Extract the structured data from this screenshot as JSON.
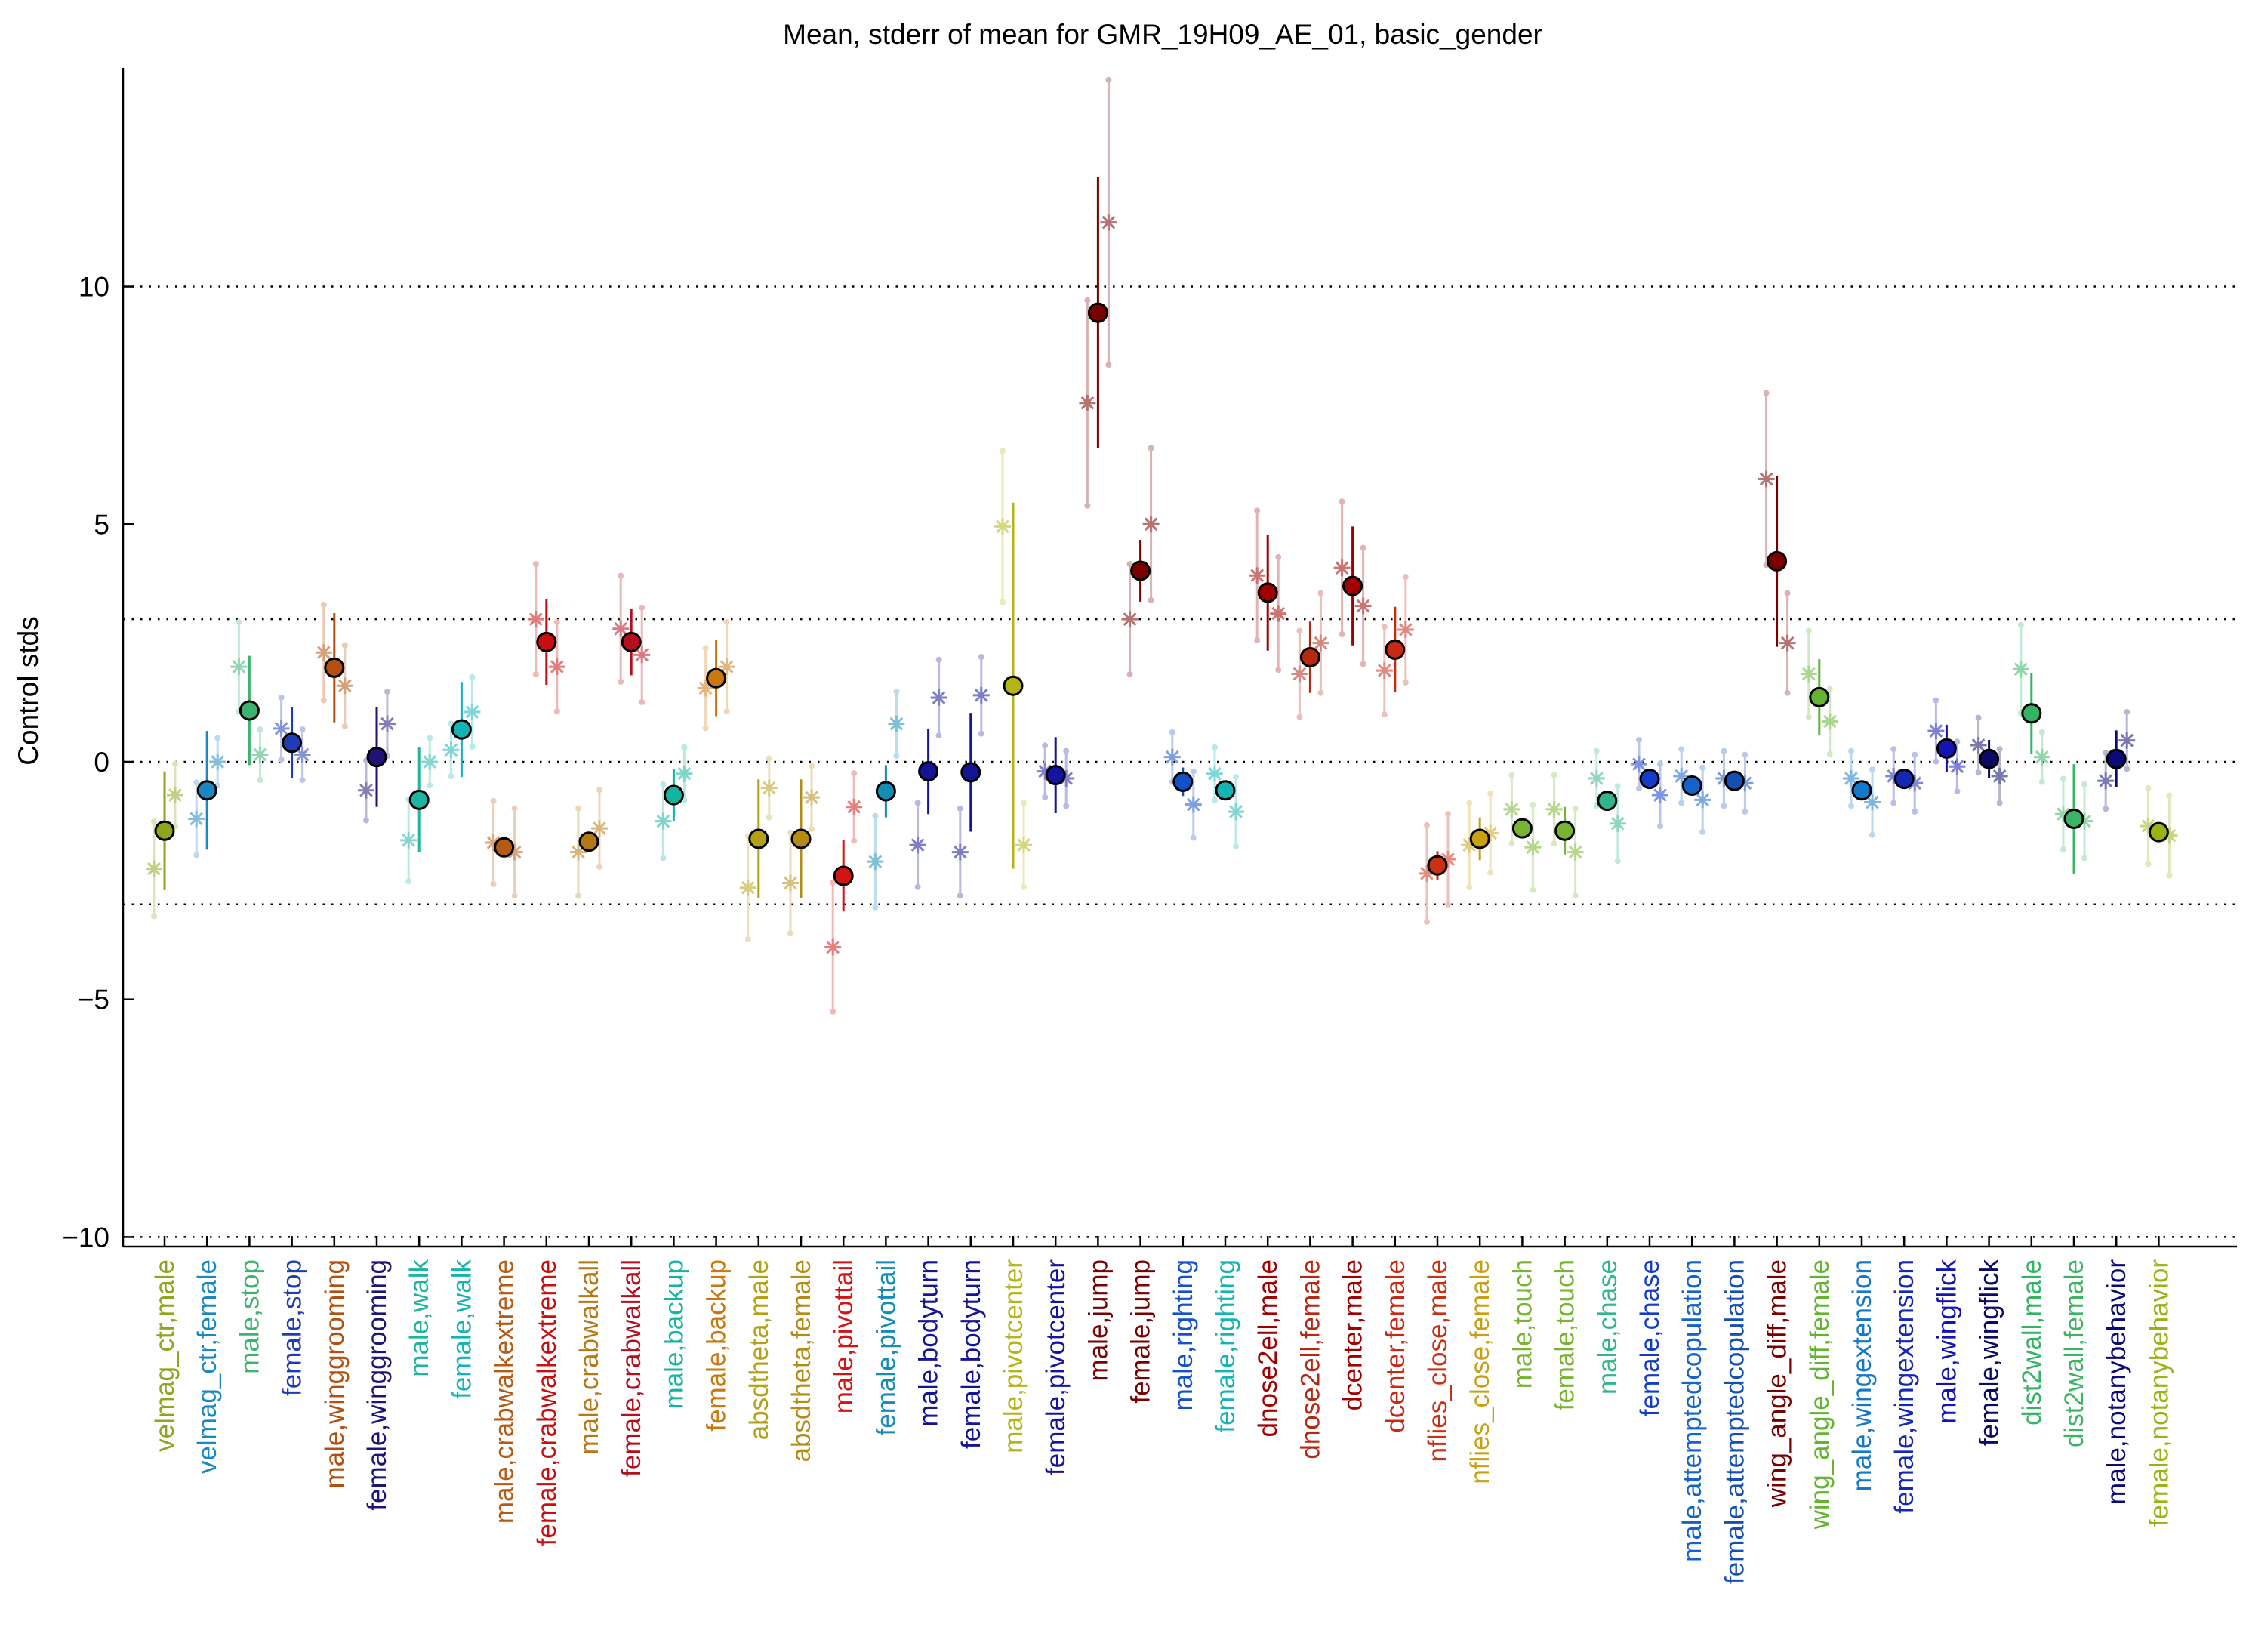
{
  "chart_data": {
    "type": "scatter",
    "title": "Mean, stderr of mean for GMR_19H09_AE_01, basic_gender",
    "xlabel": "",
    "ylabel": "Control stds",
    "ylim": [
      -10.2,
      14.6
    ],
    "yticks": [
      -10,
      -5,
      0,
      5,
      10
    ],
    "ytick_labels": [
      "−10",
      "−5",
      "0",
      "5",
      "10"
    ],
    "reference_lines": [
      -3,
      0,
      3,
      10,
      -10
    ],
    "grid": false,
    "legend": "none",
    "categories": [
      "velmag_ctr,male",
      "velmag_ctr,female",
      "male,stop",
      "female,stop",
      "male,winggrooming",
      "female,winggrooming",
      "male,walk",
      "female,walk",
      "male,crabwalkextreme",
      "female,crabwalkextreme",
      "male,crabwalkall",
      "female,crabwalkall",
      "male,backup",
      "female,backup",
      "absdtheta,male",
      "absdtheta,female",
      "male,pivottail",
      "female,pivottail",
      "male,bodyturn",
      "female,bodyturn",
      "male,pivotcenter",
      "female,pivotcenter",
      "male,jump",
      "female,jump",
      "male,righting",
      "female,righting",
      "dnose2ell,male",
      "dnose2ell,female",
      "dcenter,male",
      "dcenter,female",
      "nflies_close,male",
      "nflies_close,female",
      "male,touch",
      "female,touch",
      "male,chase",
      "female,chase",
      "male,attemptedcopulation",
      "female,attemptedcopulation",
      "wing_angle_diff,male",
      "wing_angle_diff,female",
      "male,wingextension",
      "female,wingextension",
      "male,wingflick",
      "female,wingflick",
      "dist2wall,male",
      "dist2wall,female",
      "male,notanybehavior",
      "female,notanybehavior"
    ],
    "colors": [
      "#8fa51e",
      "#1a88c0",
      "#3cb371",
      "#1e3cb4",
      "#b4500f",
      "#1e1478",
      "#1eb4a0",
      "#14b4b4",
      "#b45a14",
      "#c80f0f",
      "#b47814",
      "#b40f1e",
      "#14b4a0",
      "#c8780f",
      "#b4a014",
      "#b48c14",
      "#d21414",
      "#148cb4",
      "#141496",
      "#141496",
      "#b4b414",
      "#1414a0",
      "#780000",
      "#780000",
      "#1450c8",
      "#14b4b4",
      "#a00000",
      "#b42814",
      "#a00000",
      "#c82814",
      "#c83214",
      "#c8a014",
      "#78b432",
      "#78b432",
      "#32b48c",
      "#143cc8",
      "#1464c8",
      "#1450b4",
      "#780000",
      "#64b432",
      "#1478c8",
      "#1428b4",
      "#1414b4",
      "#0a0a64",
      "#32b464",
      "#3cb464",
      "#0a0a78",
      "#96b414"
    ],
    "series": [
      {
        "name": "mean",
        "values": [
          -1.45,
          -0.6,
          1.08,
          0.4,
          1.98,
          0.1,
          -0.8,
          0.68,
          -1.8,
          2.52,
          -1.68,
          2.52,
          -0.7,
          1.76,
          -1.62,
          -1.62,
          -2.4,
          -0.62,
          -0.2,
          -0.22,
          1.6,
          -0.28,
          9.45,
          4.02,
          -0.42,
          -0.6,
          3.56,
          2.2,
          3.7,
          2.36,
          -2.18,
          -1.62,
          -1.4,
          -1.45,
          -0.82,
          -0.36,
          -0.5,
          -0.4,
          4.22,
          1.36,
          -0.6,
          -0.36,
          0.28,
          0.06,
          1.02,
          -1.2,
          0.06,
          -1.48
        ]
      },
      {
        "name": "stderr",
        "values": [
          1.25,
          1.25,
          1.15,
          0.75,
          1.15,
          1.05,
          1.1,
          1.0,
          0.1,
          0.9,
          0.15,
          0.7,
          0.55,
          0.8,
          1.25,
          1.25,
          0.75,
          0.55,
          0.9,
          1.25,
          3.85,
          0.8,
          2.85,
          0.65,
          0.3,
          0.2,
          1.22,
          0.75,
          1.25,
          0.9,
          0.3,
          0.45,
          0.15,
          0.5,
          0.1,
          0.2,
          0.15,
          0.1,
          1.8,
          0.8,
          0.1,
          0.1,
          0.5,
          0.4,
          0.85,
          1.15,
          0.6,
          0.1
        ]
      },
      {
        "name": "line_a",
        "values": [
          -2.25,
          -1.2,
          2.0,
          0.7,
          2.3,
          -0.6,
          -1.65,
          0.25,
          -1.7,
          3.0,
          -1.9,
          2.8,
          -1.25,
          1.55,
          -2.65,
          -2.55,
          -3.9,
          -2.1,
          -1.75,
          -1.9,
          4.95,
          -0.2,
          7.55,
          3.0,
          0.1,
          -0.25,
          3.92,
          1.85,
          4.08,
          1.92,
          -2.35,
          -1.75,
          -1.0,
          -1.0,
          -0.35,
          -0.05,
          -0.3,
          -0.35,
          5.95,
          1.85,
          -0.35,
          -0.3,
          0.65,
          0.35,
          1.95,
          -1.1,
          -0.4,
          -1.35
        ]
      },
      {
        "name": "line_b",
        "values": [
          -0.7,
          0.0,
          0.15,
          0.15,
          1.6,
          0.8,
          0.0,
          1.05,
          -1.9,
          2.0,
          -1.4,
          2.25,
          -0.25,
          2.0,
          -0.55,
          -0.75,
          -0.95,
          0.8,
          1.35,
          1.4,
          -1.75,
          -0.35,
          11.35,
          5.0,
          -0.9,
          -1.05,
          3.12,
          2.5,
          3.28,
          2.78,
          -2.05,
          -1.5,
          -1.8,
          -1.9,
          -1.3,
          -0.7,
          -0.8,
          -0.45,
          2.5,
          0.85,
          -0.85,
          -0.45,
          -0.1,
          -0.3,
          0.1,
          -1.25,
          0.45,
          -1.55
        ]
      }
    ]
  }
}
